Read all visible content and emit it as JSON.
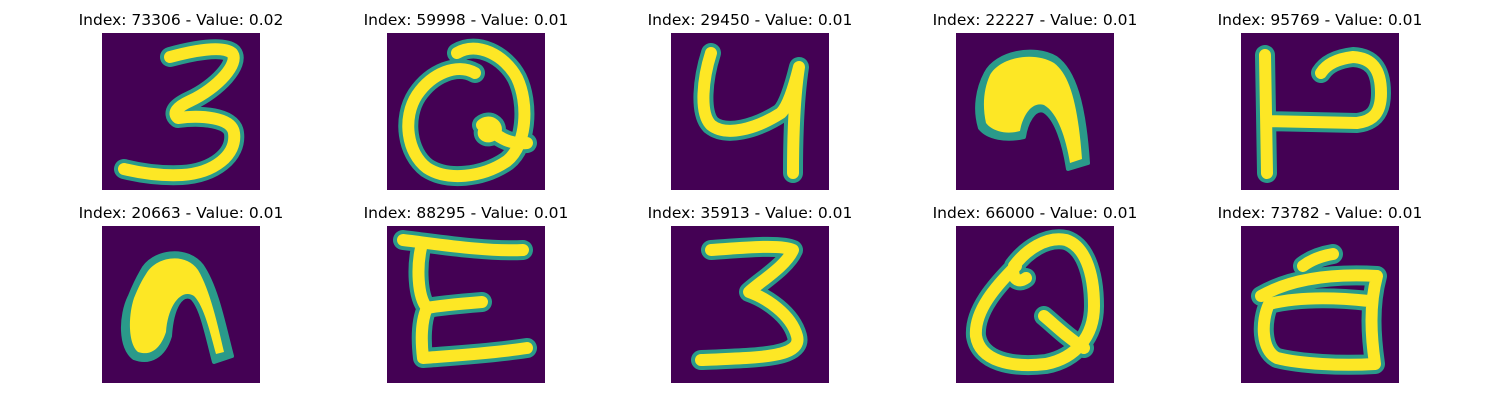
{
  "colors": {
    "background": "#440154",
    "edge": "#2a9a8a",
    "foreground": "#fde725"
  },
  "panels": [
    {
      "title": "Index: 73306 - Value: 0.02",
      "index": "73306",
      "value": "0.02",
      "glyph": "3"
    },
    {
      "title": "Index: 59998 - Value: 0.01",
      "index": "59998",
      "value": "0.01",
      "glyph": "Q"
    },
    {
      "title": "Index: 29450 - Value: 0.01",
      "index": "29450",
      "value": "0.01",
      "glyph": "y"
    },
    {
      "title": "Index: 22227 - Value: 0.01",
      "index": "22227",
      "value": "0.01",
      "glyph": "n"
    },
    {
      "title": "Index: 95769 - Value: 0.01",
      "index": "95769",
      "value": "0.01",
      "glyph": "H"
    },
    {
      "title": "Index: 20663 - Value: 0.01",
      "index": "20663",
      "value": "0.01",
      "glyph": "n"
    },
    {
      "title": "Index: 88295 - Value: 0.01",
      "index": "88295",
      "value": "0.01",
      "glyph": "E"
    },
    {
      "title": "Index: 35913 - Value: 0.01",
      "index": "35913",
      "value": "0.01",
      "glyph": "3"
    },
    {
      "title": "Index: 66000 - Value: 0.01",
      "index": "66000",
      "value": "0.01",
      "glyph": "Q"
    },
    {
      "title": "Index: 73782 - Value: 0.01",
      "index": "73782",
      "value": "0.01",
      "glyph": "d"
    }
  ]
}
